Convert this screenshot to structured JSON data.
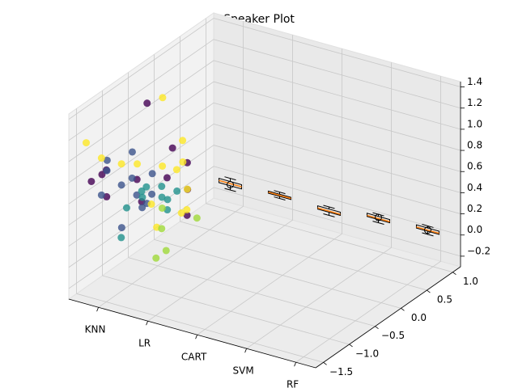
{
  "chart_data": {
    "type": "scatter3d",
    "title": "Speaker Plot",
    "categories": [
      "KNN",
      "LR",
      "CART",
      "SVM",
      "RF"
    ],
    "xlim": [
      -0.6,
      4.4
    ],
    "ylim": [
      -1.65,
      1.15
    ],
    "zlim": [
      -0.3,
      1.45
    ],
    "yticks": [
      {
        "value": -1.5,
        "label": "−1.5"
      },
      {
        "value": -1.0,
        "label": "−1.0"
      },
      {
        "value": -0.5,
        "label": "−0.5"
      },
      {
        "value": 0.0,
        "label": "0.0"
      },
      {
        "value": 0.5,
        "label": "0.5"
      },
      {
        "value": 1.0,
        "label": "1.0"
      }
    ],
    "zticks": [
      {
        "value": -0.2,
        "label": "−0.2"
      },
      {
        "value": 0.0,
        "label": "0.0"
      },
      {
        "value": 0.2,
        "label": "0.2"
      },
      {
        "value": 0.4,
        "label": "0.4"
      },
      {
        "value": 0.6,
        "label": "0.6"
      },
      {
        "value": 0.8,
        "label": "0.8"
      },
      {
        "value": 1.0,
        "label": "1.0"
      },
      {
        "value": 1.2,
        "label": "1.2"
      },
      {
        "value": 1.4,
        "label": "1.4"
      }
    ],
    "grid": true,
    "series": [
      {
        "color": "#440154",
        "x": [
          0.2,
          -0.3,
          -0.4,
          0.5,
          0.4,
          0.6,
          -0.2,
          0.1,
          0.3,
          0.8,
          -0.1,
          0.7
        ],
        "y": [
          -0.9,
          -1.5,
          -1.2,
          -0.8,
          -0.6,
          -0.5,
          -1.3,
          -1.0,
          -1.1,
          -0.7,
          -1.4,
          -0.6
        ],
        "z": [
          1.4,
          0.8,
          0.75,
          0.7,
          0.9,
          0.5,
          0.6,
          0.7,
          0.55,
          0.35,
          0.9,
          0.8
        ]
      },
      {
        "color": "#3b528b",
        "x": [
          -0.3,
          0.0,
          0.2,
          -0.1,
          0.1,
          0.3,
          -0.2,
          0.0,
          0.2,
          -0.4,
          0.4,
          0.1
        ],
        "y": [
          -1.2,
          -1.0,
          -1.1,
          -0.9,
          -1.3,
          -1.0,
          -1.4,
          -1.2,
          -0.8,
          -1.1,
          -1.0,
          -0.9
        ],
        "z": [
          0.8,
          0.7,
          0.6,
          0.9,
          0.75,
          0.5,
          0.65,
          0.3,
          0.7,
          0.85,
          0.6,
          0.4
        ]
      },
      {
        "color": "#21918c",
        "x": [
          0.3,
          0.5,
          0.1,
          0.6,
          0.4,
          0.2,
          0.7,
          0.3,
          0.5,
          0.0
        ],
        "y": [
          -1.1,
          -0.9,
          -1.2,
          -1.0,
          -0.7,
          -1.4,
          -0.8,
          -0.6,
          -1.2,
          -0.8
        ],
        "z": [
          0.65,
          0.55,
          0.5,
          0.7,
          0.35,
          0.3,
          0.6,
          0.4,
          0.75,
          0.45
        ]
      },
      {
        "color": "#fde725",
        "x": [
          0.2,
          -0.3,
          0.5,
          0.8,
          0.6,
          0.3,
          0.9,
          0.4,
          0.1,
          0.7,
          1.0,
          0.5,
          -0.2,
          0.0
        ],
        "y": [
          -0.6,
          -1.6,
          -0.5,
          -0.9,
          -1.2,
          -0.7,
          -0.8,
          -0.4,
          -1.3,
          -0.6,
          -1.0,
          -1.0,
          -1.4,
          -0.9
        ],
        "z": [
          1.35,
          1.2,
          0.95,
          0.85,
          0.6,
          0.75,
          0.45,
          0.7,
          0.95,
          0.55,
          0.5,
          0.3,
          1.0,
          0.8
        ]
      },
      {
        "color": "#a0da39",
        "x": [
          0.6,
          0.9,
          0.4,
          1.0,
          0.8
        ],
        "y": [
          -1.0,
          -1.2,
          -0.8,
          -0.7,
          -1.3
        ],
        "z": [
          0.3,
          0.2,
          0.4,
          0.35,
          0.15
        ]
      }
    ],
    "boxes": [
      {
        "whislo": -0.06,
        "q1": -0.02,
        "median": 0.0,
        "q3": 0.02,
        "whishi": 0.05,
        "fliers": [
          -0.01
        ]
      },
      {
        "whislo": -0.01,
        "q1": 0.01,
        "median": 0.02,
        "q3": 0.03,
        "whishi": 0.05,
        "fliers": []
      },
      {
        "whislo": -0.04,
        "q1": -0.01,
        "median": 0.0,
        "q3": 0.02,
        "whishi": 0.04,
        "fliers": []
      },
      {
        "whislo": 0.02,
        "q1": 0.05,
        "median": 0.06,
        "q3": 0.08,
        "whishi": 0.1,
        "fliers": [
          0.07
        ]
      },
      {
        "whislo": 0.04,
        "q1": 0.07,
        "median": 0.08,
        "q3": 0.1,
        "whishi": 0.12,
        "fliers": [
          0.08
        ]
      }
    ],
    "box_color": "#000000",
    "median_color": "#ff7f0e"
  }
}
